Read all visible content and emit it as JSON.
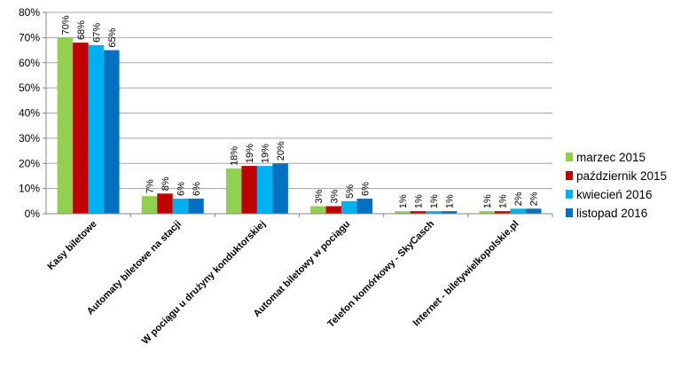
{
  "chart_data": {
    "type": "bar",
    "categories": [
      "Kasy biletowe",
      "Automaty biletowe na stacji",
      "W pociągu u drużyny konduktorskiej",
      "Automat biletowy w pociągu",
      "Telefon komórkowy - SkyCasch",
      "Internet - biletywielkopolskie.pl"
    ],
    "series": [
      {
        "name": "marzec 2015",
        "color": "#92d050",
        "values": [
          70,
          7,
          18,
          3,
          1,
          1
        ],
        "labels": [
          "70%",
          "7%",
          "18%",
          "3%",
          "1%",
          "1%"
        ]
      },
      {
        "name": "październik 2015",
        "color": "#c00000",
        "values": [
          68,
          8,
          19,
          3,
          1,
          1
        ],
        "labels": [
          "68%",
          "8%",
          "19%",
          "3%",
          "1%",
          "1%"
        ]
      },
      {
        "name": "kwiecień 2016",
        "color": "#00b0f0",
        "values": [
          67,
          6,
          19,
          5,
          1,
          2
        ],
        "labels": [
          "67%",
          "6%",
          "19%",
          "5%",
          "1%",
          "2%"
        ]
      },
      {
        "name": "listopad 2016",
        "color": "#0070c0",
        "values": [
          65,
          6,
          20,
          6,
          1,
          2
        ],
        "labels": [
          "65%",
          "6%",
          "20%",
          "6%",
          "1%",
          "2%"
        ]
      }
    ],
    "y_ticks": [
      "0%",
      "10%",
      "20%",
      "30%",
      "40%",
      "50%",
      "60%",
      "70%",
      "80%"
    ],
    "ylim": [
      0,
      80
    ],
    "grid": true,
    "legend_position": "right"
  }
}
